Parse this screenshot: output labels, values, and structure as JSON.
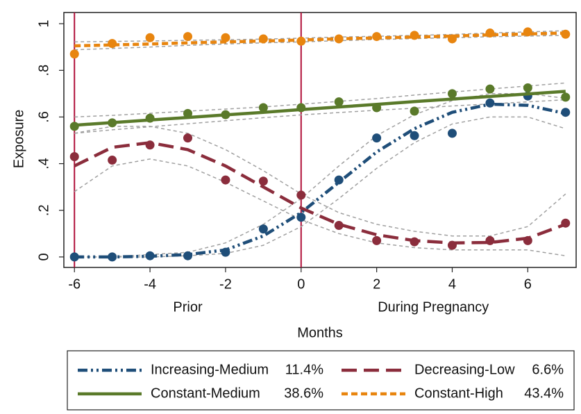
{
  "chart_data": {
    "type": "line",
    "x_label": "Months",
    "y_label": "Exposure",
    "annotations": [
      {
        "text": "Prior",
        "x": -3
      },
      {
        "text": "During Pregnancy",
        "x": 3.5
      }
    ],
    "reference_lines": [
      -6,
      0
    ],
    "reference_color": "#b0103a",
    "xlim": [
      -6.28,
      7.28
    ],
    "ylim": [
      -0.045,
      1.048
    ],
    "xticks": [
      -6,
      -4,
      -2,
      0,
      2,
      4,
      6
    ],
    "yticks": [
      0,
      {
        "value": 0.2,
        "label": ".2"
      },
      {
        "value": 0.4,
        "label": ".4"
      },
      {
        "value": 0.6,
        "label": ".6"
      },
      {
        "value": 0.8,
        "label": ".8"
      },
      1
    ],
    "ci_color": "#a0a0a0",
    "x": [
      -6,
      -5,
      -4,
      -3,
      -2,
      -1,
      0,
      1,
      2,
      3,
      4,
      5,
      6,
      7
    ],
    "series": [
      {
        "name": "Increasing-Medium",
        "share": "11.4%",
        "color": "#1f4e79",
        "line_style": "dash-dot",
        "values": [
          0,
          0,
          0.005,
          0.005,
          0.02,
          0.12,
          0.17,
          0.33,
          0.51,
          0.52,
          0.53,
          0.66,
          0.69,
          0.62
        ],
        "fitted": [
          0,
          0,
          0.003,
          0.01,
          0.03,
          0.09,
          0.19,
          0.32,
          0.45,
          0.55,
          0.62,
          0.655,
          0.65,
          0.615
        ],
        "ci_lower": [
          0,
          0,
          0,
          0.005,
          0.015,
          0.05,
          0.13,
          0.25,
          0.38,
          0.49,
          0.57,
          0.6,
          0.6,
          0.55
        ],
        "ci_upper": [
          0,
          0,
          0.01,
          0.02,
          0.06,
          0.14,
          0.25,
          0.39,
          0.52,
          0.61,
          0.67,
          0.7,
          0.7,
          0.68
        ]
      },
      {
        "name": "Decreasing-Low",
        "share": "6.6%",
        "color": "#8b2d3c",
        "line_style": "long-dash",
        "values": [
          0.43,
          0.415,
          0.48,
          0.51,
          0.33,
          0.325,
          0.265,
          0.135,
          0.07,
          0.065,
          0.05,
          0.07,
          0.07,
          0.145
        ],
        "fitted": [
          0.39,
          0.47,
          0.49,
          0.46,
          0.39,
          0.3,
          0.21,
          0.14,
          0.095,
          0.07,
          0.06,
          0.062,
          0.08,
          0.14
        ],
        "ci_lower": [
          0.28,
          0.39,
          0.42,
          0.39,
          0.32,
          0.24,
          0.16,
          0.1,
          0.06,
          0.04,
          0.03,
          0.03,
          0.03,
          0.005
        ],
        "ci_upper": [
          0.53,
          0.56,
          0.56,
          0.53,
          0.46,
          0.37,
          0.27,
          0.19,
          0.14,
          0.11,
          0.09,
          0.09,
          0.13,
          0.27
        ]
      },
      {
        "name": "Constant-Medium",
        "share": "38.6%",
        "color": "#5a7a2a",
        "line_style": "solid",
        "values": [
          0.56,
          0.575,
          0.595,
          0.615,
          0.61,
          0.64,
          0.64,
          0.665,
          0.64,
          0.625,
          0.7,
          0.72,
          0.725,
          0.685
        ],
        "fitted": [
          0.565,
          0.576,
          0.587,
          0.598,
          0.609,
          0.62,
          0.632,
          0.643,
          0.654,
          0.666,
          0.677,
          0.688,
          0.699,
          0.71
        ],
        "ci_lower": [
          0.53,
          0.545,
          0.558,
          0.571,
          0.584,
          0.597,
          0.609,
          0.619,
          0.629,
          0.638,
          0.647,
          0.656,
          0.665,
          0.674
        ],
        "ci_upper": [
          0.6,
          0.607,
          0.616,
          0.625,
          0.634,
          0.643,
          0.655,
          0.667,
          0.679,
          0.694,
          0.707,
          0.72,
          0.733,
          0.746
        ]
      },
      {
        "name": "Constant-High",
        "share": "43.4%",
        "color": "#e8850f",
        "line_style": "short-dash",
        "values": [
          0.87,
          0.915,
          0.94,
          0.945,
          0.94,
          0.935,
          0.925,
          0.935,
          0.945,
          0.95,
          0.935,
          0.96,
          0.965,
          0.955
        ],
        "fitted": [
          0.905,
          0.909,
          0.913,
          0.918,
          0.922,
          0.926,
          0.93,
          0.935,
          0.939,
          0.943,
          0.947,
          0.952,
          0.956,
          0.96
        ],
        "ci_lower": [
          0.888,
          0.894,
          0.9,
          0.907,
          0.913,
          0.918,
          0.922,
          0.927,
          0.932,
          0.936,
          0.94,
          0.944,
          0.947,
          0.95
        ],
        "ci_upper": [
          0.922,
          0.924,
          0.926,
          0.929,
          0.931,
          0.934,
          0.938,
          0.943,
          0.946,
          0.95,
          0.954,
          0.96,
          0.965,
          0.97
        ]
      }
    ]
  }
}
